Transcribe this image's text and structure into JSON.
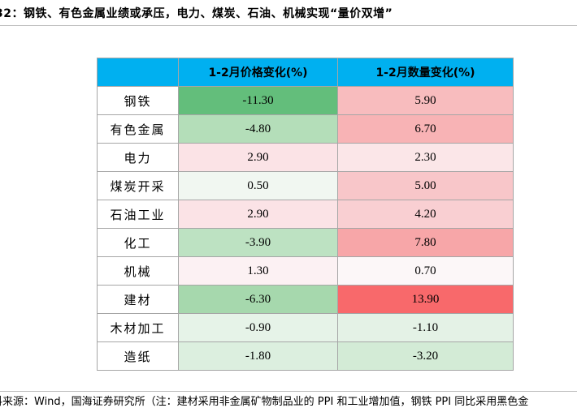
{
  "title": "32：钢铁、有色金属业绩或承压，电力、煤炭、石油、机械实现“量价双增”",
  "headers": [
    "1-2月价格变化(%)",
    "1-2月数量变化(%)"
  ],
  "rows": [
    {
      "label": "钢铁",
      "price": "-11.30",
      "volume": "5.90",
      "price_color": "#63be7b",
      "volume_color": "#f8bcbe"
    },
    {
      "label": "有色金属",
      "price": "-4.80",
      "volume": "6.70",
      "price_color": "#b4deb9",
      "volume_color": "#f8b3b5"
    },
    {
      "label": "电力",
      "price": "2.90",
      "volume": "2.30",
      "price_color": "#fbe3e6",
      "volume_color": "#fbe6e8"
    },
    {
      "label": "煤炭开采",
      "price": "0.50",
      "volume": "5.00",
      "price_color": "#f1f7f1",
      "volume_color": "#f8c6c9"
    },
    {
      "label": "石油工业",
      "price": "2.90",
      "volume": "4.20",
      "price_color": "#fbe3e6",
      "volume_color": "#f9cfd2"
    },
    {
      "label": "化工",
      "price": "-3.90",
      "volume": "7.80",
      "price_color": "#bde2c2",
      "volume_color": "#f7a6a8"
    },
    {
      "label": "机械",
      "price": "1.30",
      "volume": "0.70",
      "price_color": "#fcf1f3",
      "volume_color": "#fcf7f8"
    },
    {
      "label": "建材",
      "price": "-6.30",
      "volume": "13.90",
      "price_color": "#a6d8ad",
      "volume_color": "#f8696b"
    },
    {
      "label": "木材加工",
      "price": "-0.90",
      "volume": "-1.10",
      "price_color": "#e6f3e8",
      "volume_color": "#e4f2e6"
    },
    {
      "label": "造纸",
      "price": "-1.80",
      "volume": "-3.20",
      "price_color": "#dcefdf",
      "volume_color": "#d3ebd6"
    }
  ],
  "footer": "料来源：Wind，国海证券研究所（注：建材采用非金属矿物制品业的 PPI 和工业增加值，钢铁 PPI 同比采用黑色金"
}
